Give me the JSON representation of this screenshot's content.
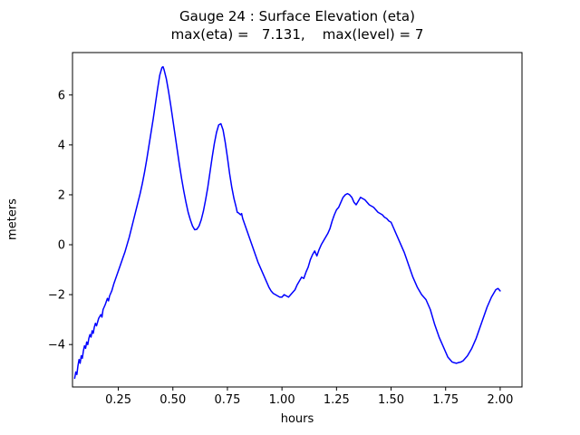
{
  "figure": {
    "title": "Gauge 24 : Surface Elevation (eta)",
    "subtitle": "max(eta) =   7.131,    max(level) = 7"
  },
  "chart_data": {
    "type": "line",
    "title": "Gauge 24 : Surface Elevation (eta)",
    "subtitle": "max(eta) =   7.131,    max(level) = 7",
    "xlabel": "hours",
    "ylabel": "meters",
    "xlim": [
      0.04,
      2.1
    ],
    "ylim": [
      -5.7,
      7.7
    ],
    "xticks": [
      0.25,
      0.5,
      0.75,
      1.0,
      1.25,
      1.5,
      1.75,
      2.0
    ],
    "xtick_labels": [
      "0.25",
      "0.50",
      "0.75",
      "1.00",
      "1.25",
      "1.50",
      "1.75",
      "2.00"
    ],
    "yticks": [
      -4,
      -2,
      0,
      2,
      4,
      6
    ],
    "ytick_labels": [
      "−4",
      "−2",
      "0",
      "2",
      "4",
      "6"
    ],
    "grid": false,
    "legend": "none",
    "line_color": "#0000ff",
    "line_width": 1.5,
    "max_eta": 7.131,
    "max_level": 7,
    "series": [
      {
        "name": "eta",
        "points": [
          [
            0.05,
            -5.35
          ],
          [
            0.055,
            -5.1
          ],
          [
            0.06,
            -5.2
          ],
          [
            0.065,
            -4.85
          ],
          [
            0.07,
            -4.6
          ],
          [
            0.075,
            -4.75
          ],
          [
            0.08,
            -4.45
          ],
          [
            0.085,
            -4.55
          ],
          [
            0.09,
            -4.25
          ],
          [
            0.095,
            -4.05
          ],
          [
            0.1,
            -4.15
          ],
          [
            0.105,
            -3.9
          ],
          [
            0.11,
            -4.0
          ],
          [
            0.115,
            -3.75
          ],
          [
            0.12,
            -3.6
          ],
          [
            0.125,
            -3.7
          ],
          [
            0.13,
            -3.45
          ],
          [
            0.135,
            -3.55
          ],
          [
            0.14,
            -3.3
          ],
          [
            0.145,
            -3.15
          ],
          [
            0.15,
            -3.25
          ],
          [
            0.16,
            -2.95
          ],
          [
            0.17,
            -2.8
          ],
          [
            0.175,
            -2.9
          ],
          [
            0.18,
            -2.6
          ],
          [
            0.19,
            -2.4
          ],
          [
            0.2,
            -2.15
          ],
          [
            0.205,
            -2.25
          ],
          [
            0.21,
            -2.05
          ],
          [
            0.22,
            -1.85
          ],
          [
            0.23,
            -1.55
          ],
          [
            0.24,
            -1.3
          ],
          [
            0.25,
            -1.05
          ],
          [
            0.26,
            -0.8
          ],
          [
            0.27,
            -0.55
          ],
          [
            0.28,
            -0.3
          ],
          [
            0.29,
            0.0
          ],
          [
            0.3,
            0.3
          ],
          [
            0.31,
            0.65
          ],
          [
            0.32,
            1.0
          ],
          [
            0.33,
            1.35
          ],
          [
            0.34,
            1.7
          ],
          [
            0.35,
            2.05
          ],
          [
            0.36,
            2.45
          ],
          [
            0.37,
            2.9
          ],
          [
            0.38,
            3.4
          ],
          [
            0.39,
            3.95
          ],
          [
            0.4,
            4.5
          ],
          [
            0.41,
            5.05
          ],
          [
            0.42,
            5.65
          ],
          [
            0.43,
            6.25
          ],
          [
            0.44,
            6.8
          ],
          [
            0.45,
            7.1
          ],
          [
            0.455,
            7.131
          ],
          [
            0.46,
            7.0
          ],
          [
            0.47,
            6.65
          ],
          [
            0.48,
            6.15
          ],
          [
            0.49,
            5.6
          ],
          [
            0.5,
            5.0
          ],
          [
            0.51,
            4.4
          ],
          [
            0.52,
            3.8
          ],
          [
            0.53,
            3.2
          ],
          [
            0.54,
            2.65
          ],
          [
            0.55,
            2.15
          ],
          [
            0.56,
            1.7
          ],
          [
            0.57,
            1.3
          ],
          [
            0.58,
            1.0
          ],
          [
            0.59,
            0.75
          ],
          [
            0.6,
            0.6
          ],
          [
            0.61,
            0.62
          ],
          [
            0.62,
            0.75
          ],
          [
            0.63,
            1.0
          ],
          [
            0.64,
            1.35
          ],
          [
            0.65,
            1.8
          ],
          [
            0.66,
            2.3
          ],
          [
            0.67,
            2.9
          ],
          [
            0.68,
            3.5
          ],
          [
            0.69,
            4.05
          ],
          [
            0.7,
            4.5
          ],
          [
            0.71,
            4.8
          ],
          [
            0.72,
            4.85
          ],
          [
            0.73,
            4.6
          ],
          [
            0.74,
            4.1
          ],
          [
            0.75,
            3.5
          ],
          [
            0.76,
            2.85
          ],
          [
            0.77,
            2.3
          ],
          [
            0.78,
            1.85
          ],
          [
            0.79,
            1.5
          ],
          [
            0.795,
            1.3
          ],
          [
            0.8,
            1.28
          ],
          [
            0.81,
            1.2
          ],
          [
            0.815,
            1.25
          ],
          [
            0.82,
            1.05
          ],
          [
            0.83,
            0.8
          ],
          [
            0.84,
            0.55
          ],
          [
            0.85,
            0.3
          ],
          [
            0.86,
            0.05
          ],
          [
            0.87,
            -0.2
          ],
          [
            0.88,
            -0.45
          ],
          [
            0.89,
            -0.7
          ],
          [
            0.9,
            -0.9
          ],
          [
            0.91,
            -1.1
          ],
          [
            0.92,
            -1.3
          ],
          [
            0.93,
            -1.5
          ],
          [
            0.94,
            -1.7
          ],
          [
            0.95,
            -1.85
          ],
          [
            0.96,
            -1.95
          ],
          [
            0.97,
            -2.0
          ],
          [
            0.98,
            -2.05
          ],
          [
            0.99,
            -2.1
          ],
          [
            1.0,
            -2.1
          ],
          [
            1.01,
            -2.0
          ],
          [
            1.02,
            -2.05
          ],
          [
            1.03,
            -2.1
          ],
          [
            1.04,
            -2.0
          ],
          [
            1.05,
            -1.9
          ],
          [
            1.06,
            -1.8
          ],
          [
            1.07,
            -1.6
          ],
          [
            1.08,
            -1.45
          ],
          [
            1.09,
            -1.3
          ],
          [
            1.1,
            -1.35
          ],
          [
            1.11,
            -1.1
          ],
          [
            1.12,
            -0.9
          ],
          [
            1.13,
            -0.6
          ],
          [
            1.14,
            -0.4
          ],
          [
            1.15,
            -0.25
          ],
          [
            1.16,
            -0.45
          ],
          [
            1.17,
            -0.2
          ],
          [
            1.18,
            0.0
          ],
          [
            1.19,
            0.15
          ],
          [
            1.2,
            0.3
          ],
          [
            1.21,
            0.45
          ],
          [
            1.22,
            0.65
          ],
          [
            1.23,
            0.95
          ],
          [
            1.24,
            1.2
          ],
          [
            1.25,
            1.4
          ],
          [
            1.26,
            1.5
          ],
          [
            1.27,
            1.7
          ],
          [
            1.28,
            1.9
          ],
          [
            1.29,
            2.0
          ],
          [
            1.3,
            2.05
          ],
          [
            1.31,
            2.0
          ],
          [
            1.32,
            1.9
          ],
          [
            1.33,
            1.7
          ],
          [
            1.34,
            1.6
          ],
          [
            1.35,
            1.75
          ],
          [
            1.36,
            1.9
          ],
          [
            1.37,
            1.85
          ],
          [
            1.38,
            1.8
          ],
          [
            1.39,
            1.7
          ],
          [
            1.4,
            1.6
          ],
          [
            1.41,
            1.55
          ],
          [
            1.42,
            1.5
          ],
          [
            1.43,
            1.4
          ],
          [
            1.44,
            1.3
          ],
          [
            1.45,
            1.25
          ],
          [
            1.46,
            1.2
          ],
          [
            1.47,
            1.1
          ],
          [
            1.48,
            1.05
          ],
          [
            1.49,
            0.95
          ],
          [
            1.5,
            0.9
          ],
          [
            1.51,
            0.7
          ],
          [
            1.52,
            0.5
          ],
          [
            1.53,
            0.3
          ],
          [
            1.54,
            0.1
          ],
          [
            1.55,
            -0.1
          ],
          [
            1.56,
            -0.3
          ],
          [
            1.57,
            -0.55
          ],
          [
            1.58,
            -0.8
          ],
          [
            1.59,
            -1.05
          ],
          [
            1.6,
            -1.3
          ],
          [
            1.61,
            -1.5
          ],
          [
            1.62,
            -1.7
          ],
          [
            1.63,
            -1.85
          ],
          [
            1.64,
            -2.0
          ],
          [
            1.65,
            -2.1
          ],
          [
            1.66,
            -2.2
          ],
          [
            1.67,
            -2.4
          ],
          [
            1.68,
            -2.6
          ],
          [
            1.69,
            -2.9
          ],
          [
            1.7,
            -3.2
          ],
          [
            1.71,
            -3.45
          ],
          [
            1.72,
            -3.7
          ],
          [
            1.73,
            -3.9
          ],
          [
            1.74,
            -4.1
          ],
          [
            1.75,
            -4.3
          ],
          [
            1.76,
            -4.5
          ],
          [
            1.77,
            -4.6
          ],
          [
            1.78,
            -4.7
          ],
          [
            1.79,
            -4.73
          ],
          [
            1.8,
            -4.75
          ],
          [
            1.81,
            -4.72
          ],
          [
            1.82,
            -4.7
          ],
          [
            1.83,
            -4.65
          ],
          [
            1.84,
            -4.55
          ],
          [
            1.85,
            -4.45
          ],
          [
            1.86,
            -4.3
          ],
          [
            1.87,
            -4.15
          ],
          [
            1.88,
            -3.95
          ],
          [
            1.89,
            -3.75
          ],
          [
            1.9,
            -3.5
          ],
          [
            1.91,
            -3.25
          ],
          [
            1.92,
            -3.0
          ],
          [
            1.93,
            -2.75
          ],
          [
            1.94,
            -2.5
          ],
          [
            1.95,
            -2.3
          ],
          [
            1.96,
            -2.1
          ],
          [
            1.97,
            -1.95
          ],
          [
            1.98,
            -1.8
          ],
          [
            1.99,
            -1.75
          ],
          [
            2.0,
            -1.85
          ]
        ]
      }
    ]
  }
}
